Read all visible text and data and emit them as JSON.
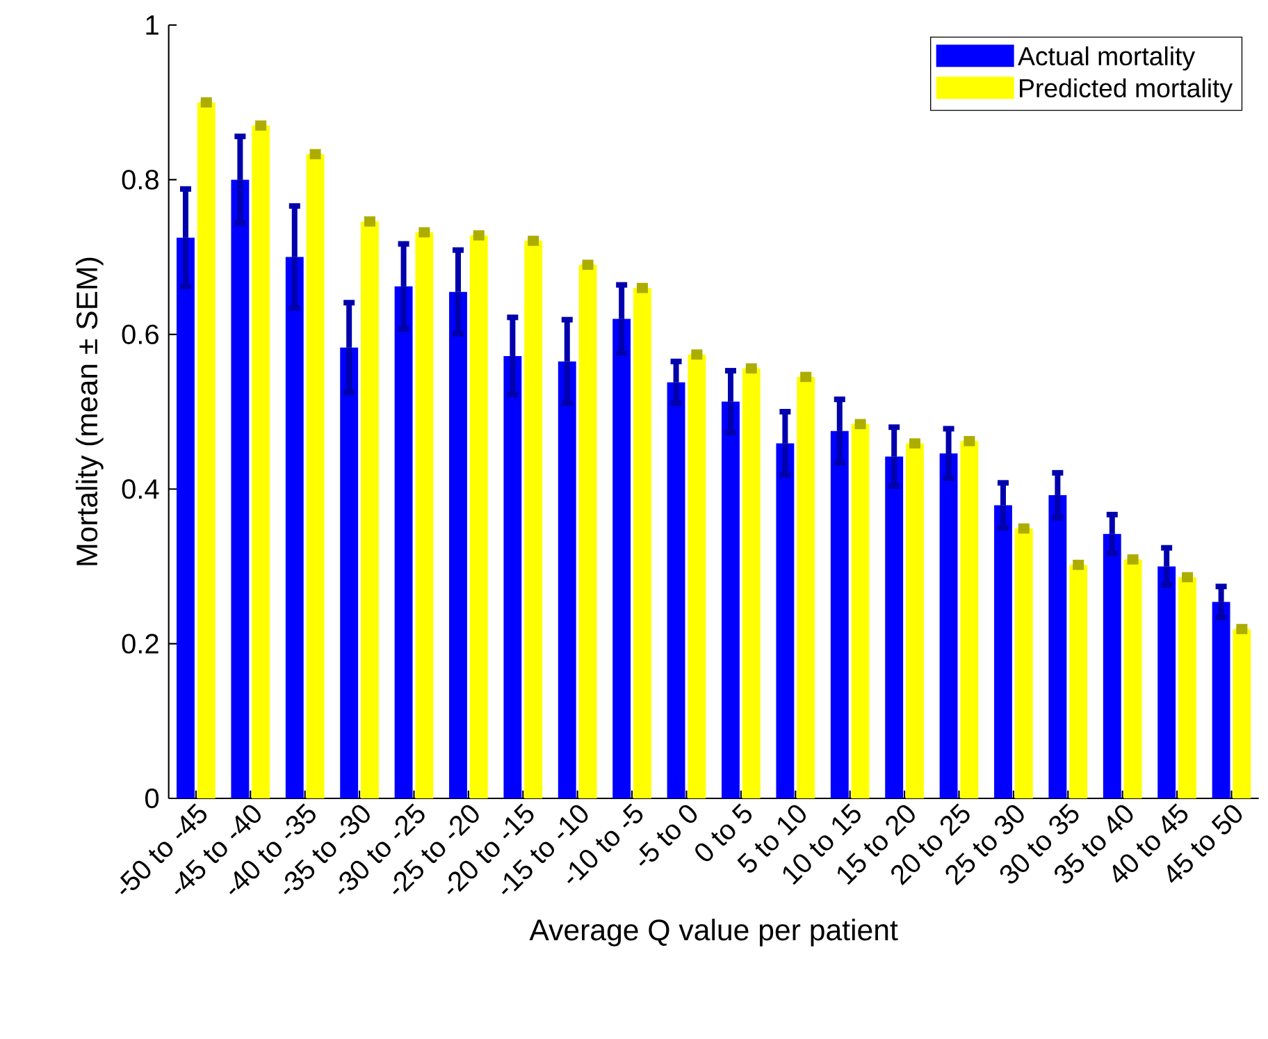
{
  "chart_data": {
    "type": "bar",
    "xlabel": "Average Q value per patient",
    "ylabel": "Mortality (mean ± SEM)",
    "categories": [
      "-50 to -45",
      "-45 to -40",
      "-40 to -35",
      "-35 to -30",
      "-30 to -25",
      "-25 to -20",
      "-20 to -15",
      "-15 to -10",
      "-10 to -5",
      "-5 to 0",
      "0 to 5",
      "5 to 10",
      "10 to 15",
      "15 to 20",
      "20 to 25",
      "25 to 30",
      "30 to 35",
      "35 to 40",
      "40 to 45",
      "45 to 50"
    ],
    "series": [
      {
        "name": "Actual mortality",
        "color": "#0000ff",
        "values": [
          0.725,
          0.8,
          0.7,
          0.583,
          0.662,
          0.655,
          0.572,
          0.565,
          0.62,
          0.538,
          0.513,
          0.459,
          0.475,
          0.442,
          0.446,
          0.379,
          0.392,
          0.342,
          0.3,
          0.254
        ],
        "errors": [
          0.063,
          0.056,
          0.066,
          0.058,
          0.055,
          0.054,
          0.05,
          0.054,
          0.044,
          0.027,
          0.04,
          0.041,
          0.041,
          0.038,
          0.032,
          0.029,
          0.029,
          0.025,
          0.024,
          0.02
        ]
      },
      {
        "name": "Predicted mortality",
        "color": "#ffff00",
        "values": [
          0.9,
          0.87,
          0.833,
          0.746,
          0.732,
          0.728,
          0.721,
          0.69,
          0.66,
          0.574,
          0.556,
          0.545,
          0.484,
          0.459,
          0.462,
          0.349,
          0.302,
          0.309,
          0.286,
          0.219
        ],
        "errors": [
          0.003,
          0.003,
          0.003,
          0.003,
          0.003,
          0.003,
          0.003,
          0.003,
          0.003,
          0.003,
          0.003,
          0.003,
          0.003,
          0.003,
          0.003,
          0.003,
          0.003,
          0.003,
          0.003,
          0.003
        ]
      }
    ],
    "ylim": [
      0,
      1
    ],
    "yticks": [
      0,
      0.2,
      0.4,
      0.6,
      0.8,
      1
    ],
    "legend": "top right",
    "grid": false
  }
}
